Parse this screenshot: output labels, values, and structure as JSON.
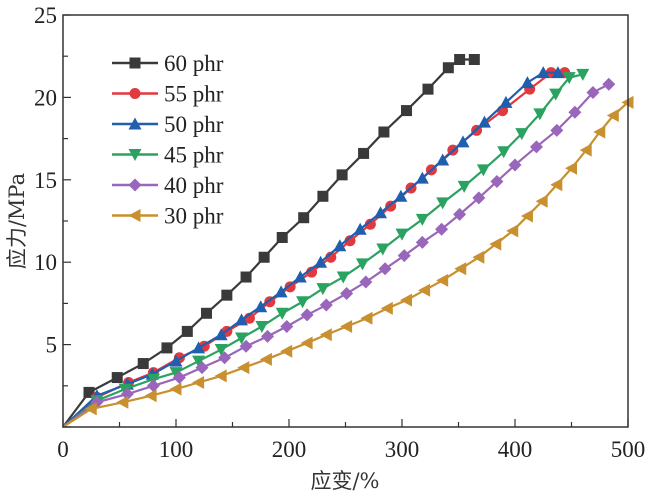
{
  "chart_data": {
    "type": "line",
    "title": "",
    "xlabel": "应变/%",
    "ylabel": "应力/MPa",
    "xlim": [
      0,
      500
    ],
    "ylim": [
      0,
      25
    ],
    "xticks": [
      0,
      100,
      200,
      300,
      400,
      500
    ],
    "yticks": [
      5,
      10,
      15,
      20,
      25
    ],
    "x_origin_label": "0",
    "grid": false,
    "legend_position": "top-left",
    "series": [
      {
        "name": "60 phr",
        "color": "#3a3a3a",
        "marker": "square",
        "x": [
          0,
          23,
          48,
          71,
          92,
          110,
          127,
          145,
          162,
          178,
          194,
          213,
          230,
          247,
          266,
          284,
          304,
          323,
          341,
          351,
          364
        ],
        "y": [
          0,
          2.1,
          3.0,
          3.85,
          4.8,
          5.8,
          6.9,
          8.0,
          9.1,
          10.3,
          11.5,
          12.7,
          14.0,
          15.3,
          16.6,
          17.9,
          19.2,
          20.5,
          21.8,
          22.3,
          22.3
        ]
      },
      {
        "name": "55 phr",
        "color": "#e0393e",
        "marker": "circle",
        "x": [
          0,
          30,
          58,
          80,
          103,
          125,
          145,
          165,
          183,
          201,
          220,
          237,
          254,
          272,
          290,
          308,
          326,
          345,
          366,
          389,
          413,
          432,
          444
        ],
        "y": [
          0,
          1.8,
          2.7,
          3.3,
          4.2,
          4.9,
          5.8,
          6.6,
          7.6,
          8.5,
          9.4,
          10.3,
          11.3,
          12.3,
          13.4,
          14.5,
          15.6,
          16.8,
          18.0,
          19.2,
          20.5,
          21.5,
          21.5
        ]
      },
      {
        "name": "50 phr",
        "color": "#1f5fae",
        "marker": "triangle-up",
        "x": [
          0,
          30,
          57,
          79,
          100,
          120,
          140,
          158,
          175,
          193,
          210,
          228,
          245,
          263,
          281,
          299,
          318,
          336,
          354,
          373,
          392,
          411,
          425,
          438
        ],
        "y": [
          0,
          1.9,
          2.6,
          3.2,
          4.0,
          4.8,
          5.6,
          6.5,
          7.3,
          8.2,
          9.1,
          10.0,
          11.0,
          12.0,
          13.0,
          14.0,
          15.1,
          16.2,
          17.3,
          18.5,
          19.7,
          20.9,
          21.5,
          21.5
        ]
      },
      {
        "name": "45 phr",
        "color": "#2aa260",
        "marker": "triangle-down",
        "x": [
          0,
          30,
          55,
          80,
          100,
          120,
          140,
          158,
          176,
          194,
          212,
          230,
          248,
          265,
          283,
          300,
          318,
          336,
          355,
          372,
          390,
          406,
          422,
          436,
          448,
          460
        ],
        "y": [
          0,
          1.6,
          2.3,
          2.9,
          3.3,
          4.0,
          4.7,
          5.4,
          6.1,
          6.9,
          7.6,
          8.4,
          9.1,
          9.9,
          10.8,
          11.7,
          12.6,
          13.6,
          14.6,
          15.6,
          16.7,
          17.8,
          19.0,
          20.2,
          21.2,
          21.4
        ]
      },
      {
        "name": "40 phr",
        "color": "#9966bb",
        "marker": "diamond",
        "x": [
          0,
          30,
          57,
          80,
          103,
          123,
          143,
          162,
          181,
          198,
          216,
          233,
          251,
          268,
          285,
          302,
          318,
          335,
          351,
          368,
          384,
          400,
          419,
          437,
          453,
          469,
          483
        ],
        "y": [
          0,
          1.5,
          2.0,
          2.5,
          3.0,
          3.6,
          4.2,
          4.9,
          5.5,
          6.1,
          6.8,
          7.4,
          8.1,
          8.8,
          9.6,
          10.4,
          11.2,
          12.0,
          12.9,
          13.9,
          14.9,
          15.9,
          17.0,
          18.0,
          19.1,
          20.3,
          20.8
        ]
      },
      {
        "name": "30 phr",
        "color": "#c8902e",
        "marker": "triangle-left",
        "x": [
          0,
          25,
          53,
          78,
          100,
          120,
          140,
          160,
          180,
          198,
          216,
          233,
          251,
          269,
          287,
          304,
          320,
          336,
          352,
          368,
          383,
          398,
          411,
          424,
          437,
          450,
          463,
          475,
          487,
          500
        ],
        "y": [
          0,
          1.1,
          1.5,
          1.9,
          2.3,
          2.7,
          3.1,
          3.6,
          4.1,
          4.6,
          5.1,
          5.6,
          6.1,
          6.6,
          7.2,
          7.7,
          8.3,
          8.9,
          9.6,
          10.3,
          11.1,
          11.9,
          12.8,
          13.7,
          14.7,
          15.7,
          16.8,
          17.9,
          18.9,
          19.7
        ]
      }
    ]
  }
}
